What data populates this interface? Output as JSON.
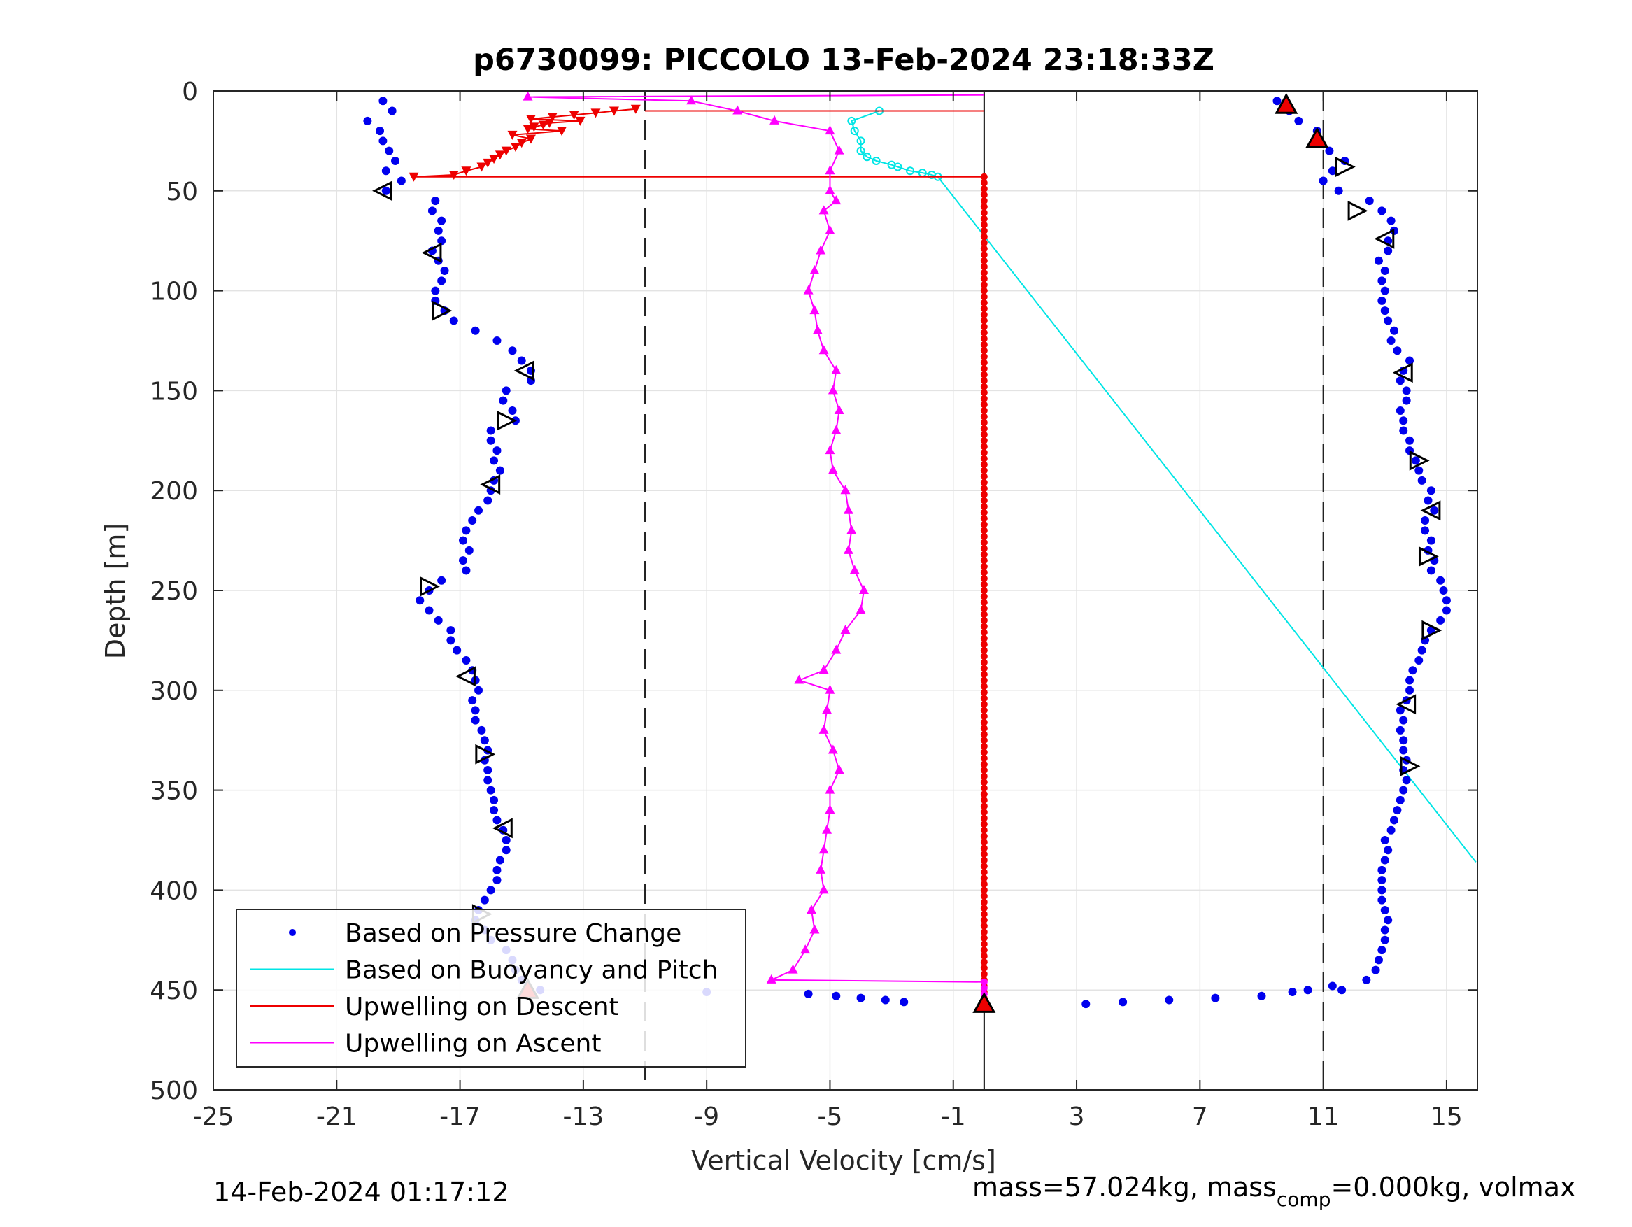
{
  "title": "p6730099: PICCOLO 13-Feb-2024 23:18:33Z",
  "footer_left": "14-Feb-2024 01:17:12",
  "footer_right": {
    "part1": "mass=57.024kg, mass",
    "sub": "comp",
    "part2": "=0.000kg, volmax"
  },
  "chart_data": {
    "type": "scatter",
    "xlabel": "Vertical Velocity [cm/s]",
    "ylabel": "Depth [m]",
    "xlim": [
      -25,
      16
    ],
    "ylim": [
      0,
      500
    ],
    "y_reversed": true,
    "grid": true,
    "xticks": [
      -25,
      -21,
      -17,
      -13,
      -9,
      -5,
      -1,
      3,
      7,
      11,
      15
    ],
    "xtick_labels": [
      "-25",
      "-21",
      "-17",
      "-13",
      "-9",
      "-5",
      "-1",
      "3",
      "7",
      "11",
      "15"
    ],
    "yticks": [
      0,
      50,
      100,
      150,
      200,
      250,
      300,
      350,
      400,
      450,
      500
    ],
    "ytick_labels": [
      "0",
      "50",
      "100",
      "150",
      "200",
      "250",
      "300",
      "350",
      "400",
      "450",
      "500"
    ],
    "dashed_lines_x": [
      -11,
      11
    ],
    "solid_line_x": 0,
    "legend_location": "bottom-left",
    "legend": [
      {
        "label": "Based on Pressure Change",
        "color": "#0000ee",
        "style": "dot"
      },
      {
        "label": "Based on Buoyancy and Pitch",
        "color": "#00e5e5",
        "style": "line"
      },
      {
        "label": "Upwelling on Descent",
        "color": "#ee0000",
        "style": "line"
      },
      {
        "label": "Upwelling on Ascent",
        "color": "#ff00ff",
        "style": "line"
      }
    ],
    "series": [
      {
        "name": "Based on Pressure Change",
        "color": "#0000ee",
        "descent": {
          "depth": [
            5,
            10,
            15,
            20,
            25,
            30,
            35,
            40,
            45,
            50,
            55,
            60,
            65,
            70,
            75,
            80,
            85,
            90,
            95,
            100,
            105,
            110,
            115,
            120,
            125,
            130,
            135,
            140,
            145,
            150,
            155,
            160,
            165,
            170,
            175,
            180,
            185,
            190,
            195,
            200,
            205,
            210,
            215,
            220,
            225,
            230,
            235,
            240,
            245,
            250,
            255,
            260,
            265,
            270,
            275,
            280,
            285,
            290,
            295,
            300,
            305,
            310,
            315,
            320,
            325,
            330,
            335,
            340,
            345,
            350,
            355,
            360,
            365,
            370,
            375,
            380,
            385,
            390,
            395,
            400,
            405,
            410,
            415,
            420,
            425,
            430,
            435,
            440,
            445,
            450
          ],
          "velocity": [
            -19.5,
            -19.2,
            -20,
            -19.6,
            -19.5,
            -19.3,
            -19.1,
            -19.4,
            -18.9,
            -19.4,
            -17.8,
            -17.9,
            -17.6,
            -17.7,
            -17.6,
            -17.9,
            -17.7,
            -17.5,
            -17.6,
            -17.8,
            -17.8,
            -17.5,
            -17.2,
            -16.5,
            -15.8,
            -15.3,
            -15,
            -14.7,
            -14.7,
            -15.5,
            -15.6,
            -15.3,
            -15.2,
            -16,
            -16,
            -15.8,
            -15.9,
            -15.7,
            -15.9,
            -16,
            -16.1,
            -16.4,
            -16.6,
            -16.8,
            -16.9,
            -16.7,
            -16.9,
            -16.8,
            -17.6,
            -18,
            -18.3,
            -18,
            -17.7,
            -17.3,
            -17.3,
            -17.1,
            -16.8,
            -16.6,
            -16.5,
            -16.4,
            -16.6,
            -16.5,
            -16.5,
            -16.3,
            -16.2,
            -16.1,
            -16.2,
            -16.1,
            -16.1,
            -16,
            -15.9,
            -15.9,
            -15.8,
            -15.6,
            -15.5,
            -15.5,
            -15.7,
            -15.8,
            -15.8,
            -16,
            -16.2,
            -16.4,
            -16.5,
            -16.2,
            -16,
            -15.5,
            -15.3,
            -15.2,
            -15,
            -14.8
          ]
        },
        "ascent": {
          "depth": [
            450,
            445,
            440,
            435,
            430,
            425,
            420,
            415,
            410,
            405,
            400,
            395,
            390,
            385,
            380,
            375,
            370,
            365,
            360,
            355,
            350,
            345,
            340,
            335,
            330,
            325,
            320,
            315,
            310,
            305,
            300,
            295,
            290,
            285,
            280,
            275,
            270,
            265,
            260,
            255,
            250,
            245,
            240,
            235,
            230,
            225,
            220,
            215,
            210,
            205,
            200,
            195,
            190,
            185,
            180,
            175,
            170,
            165,
            160,
            155,
            150,
            145,
            140,
            135,
            130,
            125,
            120,
            115,
            110,
            105,
            100,
            95,
            90,
            85,
            80,
            75,
            70,
            65,
            60,
            55,
            50,
            45,
            40,
            35,
            30,
            25,
            20,
            15,
            10,
            5
          ],
          "velocity": [
            11.6,
            12.4,
            12.7,
            12.8,
            12.9,
            13,
            13,
            13.1,
            13,
            12.9,
            12.9,
            12.9,
            12.9,
            13,
            13.1,
            13,
            13.2,
            13.3,
            13.4,
            13.5,
            13.6,
            13.7,
            13.6,
            13.7,
            13.6,
            13.6,
            13.5,
            13.6,
            13.5,
            13.7,
            13.8,
            13.8,
            13.9,
            14.1,
            14.2,
            14.3,
            14.5,
            14.8,
            15,
            15,
            14.9,
            14.8,
            14.5,
            14.6,
            14.4,
            14.5,
            14.3,
            14.3,
            14.6,
            14.4,
            14.5,
            14.2,
            14.1,
            14,
            13.8,
            13.8,
            13.6,
            13.6,
            13.5,
            13.7,
            13.7,
            13.5,
            13.6,
            13.8,
            13.4,
            13.2,
            13.3,
            13.1,
            13,
            12.9,
            13,
            12.9,
            13,
            12.8,
            13.1,
            13.1,
            13.3,
            13.2,
            12.9,
            12.5,
            11.5,
            11,
            11.3,
            11.7,
            11.2,
            10.8,
            10.8,
            10.2,
            9.9,
            9.5
          ]
        },
        "bottom": {
          "velocity": [
            -14.4,
            -9,
            -5.7,
            -4.8,
            -4,
            -3.2,
            -2.6,
            3.3,
            4.5,
            6,
            7.5,
            9,
            10,
            10.5,
            11.3
          ],
          "depth": [
            450,
            451,
            452,
            453,
            454,
            455,
            456,
            457,
            456,
            455,
            454,
            453,
            451,
            450,
            448
          ]
        }
      },
      {
        "name": "Based on Buoyancy and Pitch",
        "color": "#00e5e5",
        "depth": [
          10,
          15,
          20,
          25,
          30,
          33,
          35,
          37,
          38,
          40,
          41,
          42,
          43,
          386
        ],
        "velocity": [
          -3.4,
          -4.3,
          -4.2,
          -4.0,
          -4.0,
          -3.8,
          -3.5,
          -3.0,
          -2.8,
          -2.4,
          -2.0,
          -1.7,
          -1.5,
          15.95
        ]
      },
      {
        "name": "Upwelling on Descent",
        "color": "#ee0000",
        "depth": [
          9,
          10,
          11,
          12,
          13,
          14,
          15,
          16,
          17,
          18,
          19,
          20,
          22,
          24,
          26,
          28,
          30,
          32,
          34,
          36,
          38,
          40,
          42,
          43
        ],
        "velocity": [
          -11.3,
          -12.0,
          -12.6,
          -13.3,
          -14.0,
          -14.7,
          -13.1,
          -14.1,
          -14.3,
          -14.6,
          -14.8,
          -13.7,
          -15.3,
          -14.7,
          -15.0,
          -15.2,
          -15.5,
          -15.7,
          -15.9,
          -16.1,
          -16.3,
          -16.8,
          -17.2,
          -18.5
        ]
      },
      {
        "name": "Upwelling on Ascent",
        "color": "#ff00ff",
        "depth": [
          445,
          440,
          430,
          420,
          410,
          400,
          390,
          380,
          370,
          360,
          350,
          340,
          330,
          320,
          310,
          300,
          295,
          290,
          280,
          270,
          260,
          250,
          240,
          230,
          220,
          210,
          200,
          190,
          180,
          170,
          160,
          150,
          140,
          130,
          120,
          110,
          100,
          90,
          80,
          70,
          60,
          55,
          50,
          40,
          30,
          20,
          15,
          10,
          5,
          3
        ],
        "velocity": [
          -6.9,
          -6.2,
          -5.8,
          -5.5,
          -5.6,
          -5.2,
          -5.3,
          -5.2,
          -5.1,
          -5.0,
          -5.0,
          -4.7,
          -4.9,
          -5.2,
          -5.1,
          -5.0,
          -6.0,
          -5.2,
          -4.8,
          -4.5,
          -4.0,
          -3.9,
          -4.2,
          -4.4,
          -4.3,
          -4.4,
          -4.5,
          -4.9,
          -5.0,
          -4.8,
          -4.7,
          -4.9,
          -4.8,
          -5.2,
          -5.4,
          -5.5,
          -5.7,
          -5.5,
          -5.3,
          -5.0,
          -5.2,
          -4.8,
          -5.0,
          -5.0,
          -4.7,
          -5.0,
          -6.8,
          -8.0,
          -9.5,
          -14.8
        ]
      }
    ]
  }
}
